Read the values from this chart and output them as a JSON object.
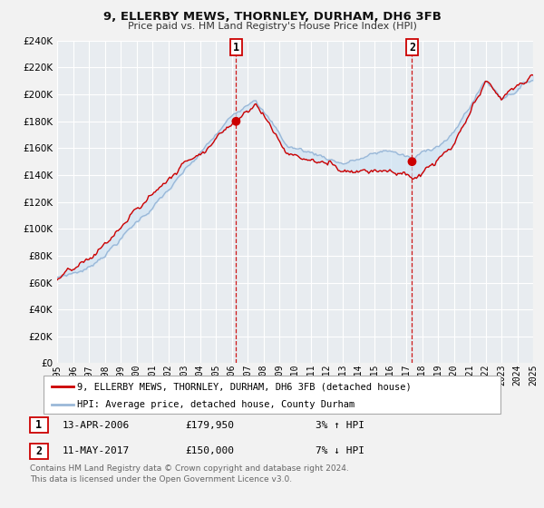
{
  "title": "9, ELLERBY MEWS, THORNLEY, DURHAM, DH6 3FB",
  "subtitle": "Price paid vs. HM Land Registry's House Price Index (HPI)",
  "bg_color": "#f2f2f2",
  "plot_bg_color": "#e8ecf0",
  "grid_color": "#ffffff",
  "hpi_color": "#9ab8d8",
  "fill_color": "#d0e4f4",
  "price_color": "#cc0000",
  "marker_color": "#cc0000",
  "xmin": 1995,
  "xmax": 2025,
  "ymin": 0,
  "ymax": 240000,
  "yticks": [
    0,
    20000,
    40000,
    60000,
    80000,
    100000,
    120000,
    140000,
    160000,
    180000,
    200000,
    220000,
    240000
  ],
  "sale1_x": 2006.28,
  "sale1_y": 179950,
  "sale1_label": "1",
  "sale1_date": "13-APR-2006",
  "sale1_price": "£179,950",
  "sale1_hpi": "3% ↑ HPI",
  "sale2_x": 2017.37,
  "sale2_y": 150000,
  "sale2_label": "2",
  "sale2_date": "11-MAY-2017",
  "sale2_price": "£150,000",
  "sale2_hpi": "7% ↓ HPI",
  "legend_line1": "9, ELLERBY MEWS, THORNLEY, DURHAM, DH6 3FB (detached house)",
  "legend_line2": "HPI: Average price, detached house, County Durham",
  "footnote1": "Contains HM Land Registry data © Crown copyright and database right 2024.",
  "footnote2": "This data is licensed under the Open Government Licence v3.0."
}
